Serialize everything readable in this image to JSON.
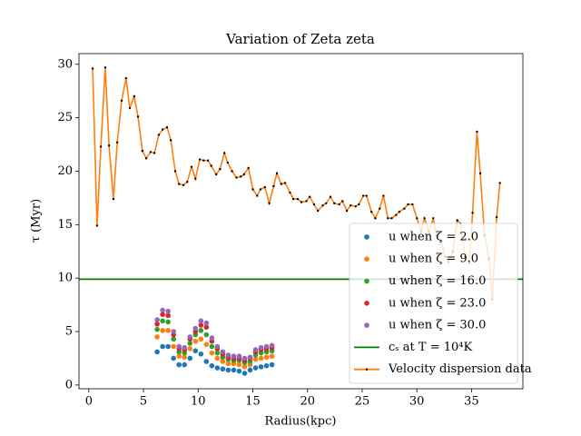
{
  "chart_data": {
    "type": "line",
    "title": "Variation of Zeta zeta",
    "x_label": "Radius(kpc)",
    "y_label": "τ (Myr)",
    "xlim": [
      -0.9,
      39.7
    ],
    "ylim": [
      -0.35,
      31.0
    ],
    "xticks": [
      0,
      5,
      10,
      15,
      20,
      25,
      30,
      35
    ],
    "yticks": [
      0,
      5,
      10,
      15,
      20,
      25,
      30
    ],
    "legend_loc": "lower right",
    "series": [
      {
        "name": "u when ζ = 2.0",
        "type": "scatter",
        "color": "#1f77b4",
        "x": [
          6.25,
          6.75,
          7.25,
          7.75,
          8.25,
          8.75,
          9.25,
          9.75,
          10.25,
          10.75,
          11.25,
          11.75,
          12.25,
          12.75,
          13.25,
          13.75,
          14.25,
          14.75,
          15.25,
          15.75,
          16.25,
          16.75
        ],
        "values": [
          3.1,
          3.6,
          3.6,
          2.5,
          1.9,
          1.9,
          2.5,
          3.2,
          2.9,
          2.2,
          1.8,
          1.6,
          1.5,
          1.4,
          1.4,
          1.3,
          1.1,
          1.4,
          1.6,
          1.7,
          1.8,
          1.9
        ]
      },
      {
        "name": "u when ζ = 9.0",
        "type": "scatter",
        "color": "#ff7f0e",
        "x": [
          6.25,
          6.75,
          7.25,
          7.75,
          8.25,
          8.75,
          9.25,
          9.75,
          10.25,
          10.75,
          11.25,
          11.75,
          12.25,
          12.75,
          13.25,
          13.75,
          14.25,
          14.75,
          15.25,
          15.75,
          16.25,
          16.75
        ],
        "values": [
          4.5,
          5.1,
          5.1,
          3.6,
          2.7,
          2.6,
          3.4,
          4.1,
          4.3,
          3.8,
          3.0,
          2.5,
          2.2,
          2.0,
          2.0,
          1.9,
          1.7,
          1.9,
          2.4,
          2.5,
          2.6,
          2.7
        ]
      },
      {
        "name": "u when ζ = 16.0",
        "type": "scatter",
        "color": "#2ca02c",
        "x": [
          6.25,
          6.75,
          7.25,
          7.75,
          8.25,
          8.75,
          9.25,
          9.75,
          10.25,
          10.75,
          11.25,
          11.75,
          12.25,
          12.75,
          13.25,
          13.75,
          14.25,
          14.75,
          15.25,
          15.75,
          16.25,
          16.75
        ],
        "values": [
          5.2,
          6.0,
          5.9,
          4.3,
          3.1,
          3.0,
          3.9,
          4.7,
          5.1,
          4.7,
          3.6,
          3.0,
          2.6,
          2.4,
          2.3,
          2.3,
          2.1,
          2.2,
          2.8,
          3.0,
          3.1,
          3.2
        ]
      },
      {
        "name": "u when ζ = 23.0",
        "type": "scatter",
        "color": "#d62728",
        "x": [
          6.25,
          6.75,
          7.25,
          7.75,
          8.25,
          8.75,
          9.25,
          9.75,
          10.25,
          10.75,
          11.25,
          11.75,
          12.25,
          12.75,
          13.25,
          13.75,
          14.25,
          14.75,
          15.25,
          15.75,
          16.25,
          16.75
        ],
        "values": [
          5.7,
          6.6,
          6.5,
          4.7,
          3.4,
          3.3,
          4.3,
          5.0,
          5.6,
          5.4,
          4.1,
          3.4,
          2.9,
          2.6,
          2.5,
          2.5,
          2.3,
          2.5,
          3.1,
          3.3,
          3.4,
          3.5
        ]
      },
      {
        "name": "u when ζ = 30.0",
        "type": "scatter",
        "color": "#9467bd",
        "x": [
          6.25,
          6.75,
          7.25,
          7.75,
          8.25,
          8.75,
          9.25,
          9.75,
          10.25,
          10.75,
          11.25,
          11.75,
          12.25,
          12.75,
          13.25,
          13.75,
          14.25,
          14.75,
          15.25,
          15.75,
          16.25,
          16.75
        ],
        "values": [
          6.1,
          7.0,
          6.9,
          5.0,
          3.6,
          3.5,
          4.5,
          5.3,
          6.0,
          5.8,
          4.4,
          3.6,
          3.1,
          2.8,
          2.7,
          2.7,
          2.5,
          2.6,
          3.3,
          3.5,
          3.6,
          3.7
        ]
      },
      {
        "name": "cₛ at T = 10⁴K",
        "type": "hline",
        "color": "#008000",
        "y": 9.9
      },
      {
        "name": "Velocity dispersion data",
        "type": "line",
        "color": "#ff7f0e",
        "marker_color": "#000000",
        "x": [
          0.35,
          0.75,
          1.1,
          1.5,
          1.85,
          2.25,
          2.6,
          3.0,
          3.4,
          3.75,
          4.15,
          4.5,
          4.9,
          5.25,
          5.65,
          6.0,
          6.4,
          6.75,
          7.15,
          7.5,
          7.9,
          8.25,
          8.65,
          9.0,
          9.4,
          9.75,
          10.15,
          10.5,
          10.9,
          11.2,
          11.65,
          12.0,
          12.4,
          12.7,
          13.1,
          13.5,
          13.9,
          14.2,
          14.6,
          15.0,
          15.4,
          15.7,
          16.1,
          16.5,
          16.9,
          17.2,
          17.6,
          17.95,
          18.4,
          18.7,
          19.1,
          19.45,
          19.9,
          20.2,
          20.6,
          20.95,
          21.4,
          21.7,
          22.1,
          22.45,
          22.9,
          23.2,
          23.6,
          23.95,
          24.4,
          24.7,
          25.1,
          25.4,
          25.85,
          26.2,
          26.6,
          26.95,
          27.35,
          27.7,
          28.1,
          28.4,
          28.85,
          29.2,
          29.6,
          30.0,
          30.4,
          30.7,
          31.1,
          31.5,
          31.8,
          32.2,
          32.6,
          32.9,
          33.3,
          33.7,
          34.0,
          34.4,
          34.8,
          35.1,
          35.5,
          35.8,
          36.2,
          36.6,
          36.9,
          37.3,
          37.6
        ],
        "values": [
          29.6,
          14.9,
          22.3,
          29.7,
          22.4,
          17.4,
          22.7,
          26.6,
          28.7,
          25.9,
          27.0,
          25.1,
          21.9,
          21.2,
          21.8,
          21.7,
          23.4,
          23.9,
          24.1,
          22.9,
          20.0,
          18.8,
          18.7,
          19.0,
          20.4,
          19.3,
          21.1,
          21.0,
          21.0,
          20.5,
          19.7,
          20.2,
          21.7,
          20.8,
          20.0,
          19.4,
          19.5,
          19.7,
          20.3,
          18.3,
          17.7,
          18.3,
          18.5,
          17.0,
          18.6,
          19.8,
          18.8,
          18.9,
          18.0,
          17.4,
          17.4,
          17.1,
          17.2,
          17.6,
          16.9,
          16.3,
          16.8,
          17.0,
          17.6,
          17.0,
          16.9,
          17.2,
          16.3,
          16.8,
          16.7,
          16.9,
          17.7,
          17.7,
          16.2,
          15.6,
          16.5,
          17.7,
          15.6,
          15.6,
          15.9,
          16.2,
          16.5,
          16.9,
          16.9,
          15.6,
          14.4,
          15.6,
          14.3,
          15.6,
          14.0,
          13.5,
          12.0,
          11.5,
          12.5,
          15.4,
          15.1,
          12.0,
          11.4,
          16.1,
          23.7,
          19.8,
          14.0,
          11.8,
          8.0,
          15.7,
          18.9
        ]
      }
    ]
  }
}
